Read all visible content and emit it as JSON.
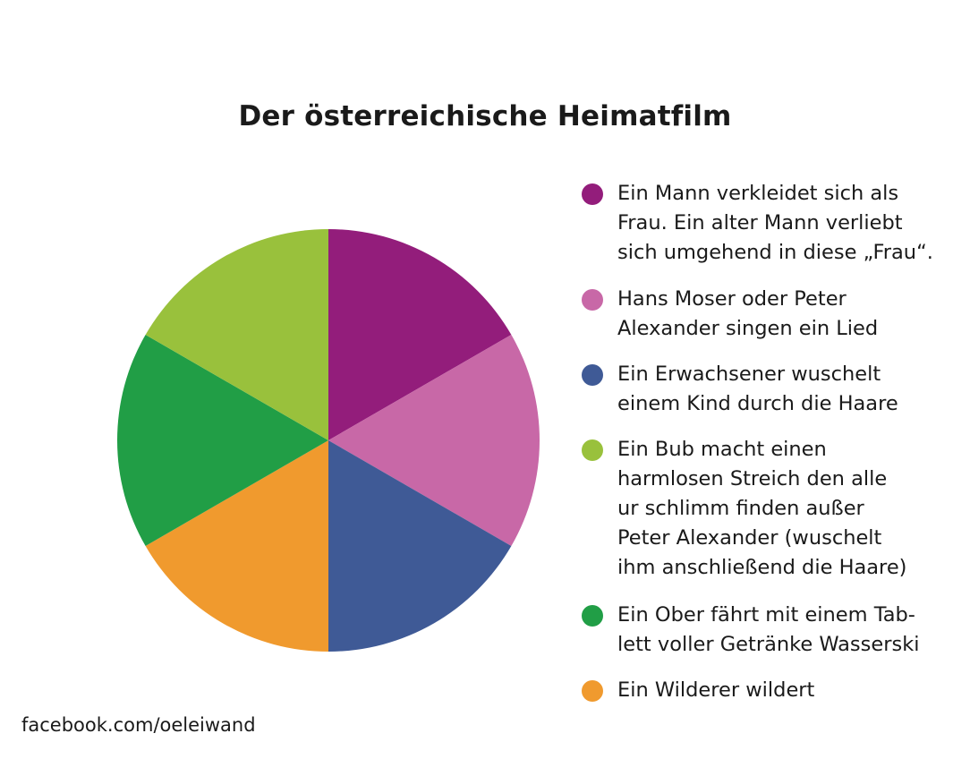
{
  "chart_data": {
    "type": "pie",
    "title": "Der österreichische Heimatfilm",
    "categories": [
      "Ein Mann verkleidet sich als\nFrau. Ein alter Mann verliebt\nsich umgehend in diese „Frau“.",
      "Hans Moser oder Peter\nAlexander singen ein Lied",
      "Ein Erwachsener wuschelt\neinem Kind durch die Haare",
      "Ein Bub macht einen\nharmlosen Streich den alle\nur schlimm finden außer\nPeter Alexander (wuschelt\nihm anschließend die Haare)",
      "Ein Ober fährt mit einem Tab-\nlett voller Getränke Wasserski",
      "Ein Wilderer wildert"
    ],
    "values": [
      16.7,
      16.7,
      16.7,
      16.7,
      16.7,
      16.7
    ],
    "colors": [
      "#931d7b",
      "#c868a7",
      "#3f5a96",
      "#99c13c",
      "#219e46",
      "#f09a2e"
    ],
    "legend": "right",
    "slice_order": [
      0,
      1,
      2,
      5,
      4,
      3
    ]
  },
  "footer": "facebook.com/oeleiwand"
}
